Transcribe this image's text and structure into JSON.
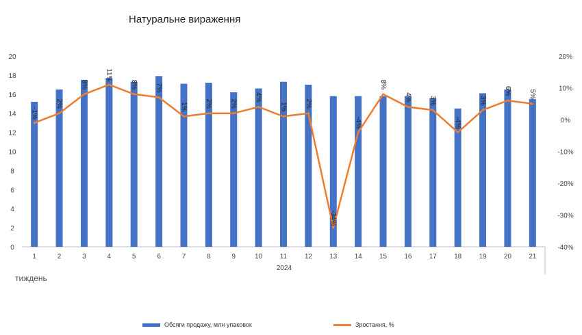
{
  "chart_data": {
    "type": "bar",
    "title": "Натуральне вираження",
    "categories": [
      "1",
      "2",
      "3",
      "4",
      "5",
      "6",
      "7",
      "8",
      "9",
      "10",
      "11",
      "12",
      "13",
      "14",
      "15",
      "16",
      "17",
      "18",
      "19",
      "20",
      "21"
    ],
    "x_group_label": "2024",
    "xlabel": "тиждень",
    "ylim_left": [
      0,
      20
    ],
    "yticks_left": [
      "0",
      "2",
      "4",
      "6",
      "8",
      "10",
      "12",
      "14",
      "16",
      "18",
      "20"
    ],
    "ylim_right": [
      -40,
      20
    ],
    "yticks_right": [
      "-40%",
      "-30%",
      "-20%",
      "-10%",
      "0%",
      "10%",
      "20%"
    ],
    "grid": false,
    "legend_position": "bottom",
    "series": [
      {
        "name": "Обсяги продажу, млн упаковок",
        "type": "bar",
        "axis": "left",
        "color": "#4472C4",
        "values": [
          15.2,
          16.5,
          17.5,
          17.7,
          17.3,
          17.9,
          17.1,
          17.2,
          16.2,
          16.6,
          17.3,
          17.0,
          15.8,
          15.8,
          15.8,
          15.8,
          15.6,
          14.5,
          16.1,
          16.5,
          15.5
        ]
      },
      {
        "name": "Зростання, %",
        "type": "line",
        "axis": "right",
        "color": "#ED7D31",
        "values": [
          -1,
          2,
          8,
          11,
          8,
          7,
          1,
          2,
          2,
          4,
          1,
          2,
          -34,
          -4,
          8,
          4,
          3,
          -4,
          3,
          6,
          5
        ],
        "data_labels": [
          "-1%",
          "2%",
          "8%",
          "11%",
          "8%",
          "7%",
          "1%",
          "2%",
          "2%",
          "4%",
          "1%",
          "2%",
          "-34%",
          "-4%",
          "8%",
          "4%",
          "3%",
          "-4%",
          "3%",
          "6%",
          "5%"
        ]
      }
    ]
  }
}
